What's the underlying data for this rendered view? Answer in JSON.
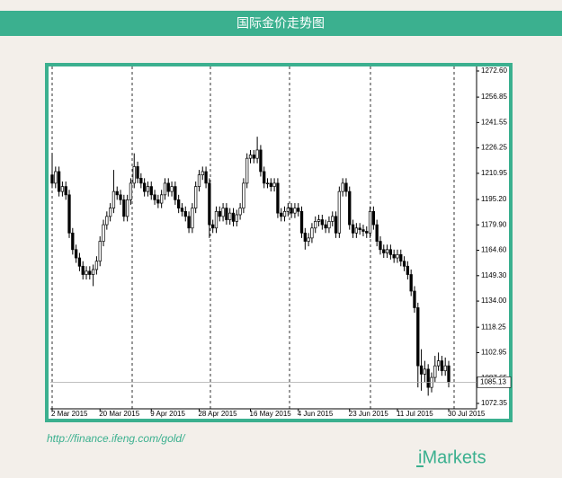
{
  "header": {
    "title": "国际金价走势图"
  },
  "chart_data": {
    "type": "candlestick",
    "ylim": [
      1069.1,
      1275.3
    ],
    "yticks": [
      {
        "value": 1272.6,
        "label": "1272.60"
      },
      1256.85,
      1241.55,
      1226.25,
      1210.95,
      {
        "value": 1195.2,
        "label": "1195.20"
      },
      {
        "value": 1179.9,
        "label": "1179.90"
      },
      {
        "value": 1164.6,
        "label": "1164.60"
      },
      {
        "value": 1149.3,
        "label": "1149.30"
      },
      {
        "value": 1134,
        "label": "1134.00"
      },
      1118.25,
      1102.95,
      1087.65,
      1072.35
    ],
    "xticks": [
      {
        "value": 0,
        "label": "2 Mar 2015"
      },
      {
        "value": 14,
        "label": "20 Mar 2015"
      },
      {
        "value": 29,
        "label": "9 Apr 2015"
      },
      {
        "value": 43,
        "label": "28 Apr 2015"
      },
      {
        "value": 58,
        "label": "16 May 2015"
      },
      {
        "value": 72,
        "label": "4 Jun 2015"
      },
      {
        "value": 87,
        "label": "23 Jun 2015"
      },
      {
        "value": 101,
        "label": "11 Jul 2015"
      },
      {
        "value": 116,
        "label": "30 Jul 2015"
      }
    ],
    "last_price": 1085.13,
    "up_color": "#ffffff",
    "down_color": "#000000",
    "open": [
      1210,
      1205,
      1212,
      1200,
      1203,
      1198,
      1175,
      1165,
      1160,
      1155,
      1150,
      1152,
      1150,
      1153,
      1158,
      1170,
      1180,
      1185,
      1190,
      1200,
      1198,
      1195,
      1185,
      1195,
      1205,
      1215,
      1208,
      1205,
      1200,
      1203,
      1198,
      1195,
      1193,
      1198,
      1205,
      1200,
      1203,
      1195,
      1190,
      1188,
      1185,
      1178,
      1190,
      1203,
      1210,
      1212,
      1205,
      1180,
      1178,
      1188,
      1185,
      1190,
      1183,
      1187,
      1182,
      1186,
      1190,
      1205,
      1220,
      1222,
      1220,
      1225,
      1212,
      1205,
      1205,
      1203,
      1205,
      1187,
      1185,
      1188,
      1190,
      1187,
      1190,
      1188,
      1175,
      1170,
      1172,
      1178,
      1182,
      1183,
      1180,
      1178,
      1182,
      1185,
      1175,
      1200,
      1205,
      1200,
      1180,
      1175,
      1178,
      1177,
      1176,
      1175,
      1188,
      1180,
      1170,
      1165,
      1163,
      1165,
      1162,
      1160,
      1162,
      1158,
      1155,
      1150,
      1140,
      1130,
      1095,
      1090,
      1093,
      1082,
      1088,
      1095,
      1098,
      1092,
      1095
    ],
    "high": [
      1223,
      1215,
      1215,
      1206,
      1206,
      1201,
      1178,
      1168,
      1163,
      1158,
      1155,
      1155,
      1156,
      1161,
      1173,
      1183,
      1188,
      1193,
      1213,
      1203,
      1201,
      1198,
      1198,
      1208,
      1223,
      1218,
      1211,
      1208,
      1206,
      1206,
      1201,
      1198,
      1201,
      1208,
      1208,
      1206,
      1206,
      1198,
      1193,
      1191,
      1188,
      1193,
      1206,
      1213,
      1215,
      1215,
      1208,
      1183,
      1191,
      1191,
      1193,
      1193,
      1190,
      1190,
      1189,
      1193,
      1208,
      1223,
      1225,
      1225,
      1233,
      1228,
      1215,
      1208,
      1208,
      1208,
      1208,
      1190,
      1191,
      1193,
      1193,
      1193,
      1193,
      1191,
      1178,
      1175,
      1181,
      1185,
      1186,
      1186,
      1183,
      1185,
      1188,
      1188,
      1203,
      1208,
      1208,
      1203,
      1183,
      1181,
      1181,
      1180,
      1179,
      1191,
      1191,
      1183,
      1173,
      1168,
      1168,
      1168,
      1165,
      1165,
      1165,
      1161,
      1158,
      1153,
      1143,
      1133,
      1105,
      1098,
      1096,
      1091,
      1101,
      1103,
      1101,
      1100,
      1098
    ],
    "low": [
      1202,
      1202,
      1197,
      1197,
      1195,
      1172,
      1162,
      1157,
      1152,
      1147,
      1147,
      1147,
      1143,
      1150,
      1155,
      1167,
      1177,
      1182,
      1187,
      1195,
      1192,
      1182,
      1182,
      1192,
      1202,
      1205,
      1202,
      1197,
      1197,
      1195,
      1192,
      1190,
      1190,
      1195,
      1197,
      1197,
      1192,
      1187,
      1185,
      1182,
      1175,
      1175,
      1187,
      1200,
      1207,
      1202,
      1172,
      1175,
      1175,
      1182,
      1182,
      1180,
      1180,
      1179,
      1179,
      1183,
      1187,
      1202,
      1217,
      1217,
      1217,
      1209,
      1202,
      1202,
      1200,
      1200,
      1184,
      1182,
      1182,
      1185,
      1184,
      1184,
      1185,
      1172,
      1165,
      1167,
      1169,
      1175,
      1179,
      1177,
      1175,
      1175,
      1179,
      1172,
      1172,
      1197,
      1197,
      1177,
      1172,
      1172,
      1174,
      1173,
      1172,
      1172,
      1177,
      1167,
      1162,
      1160,
      1160,
      1159,
      1157,
      1157,
      1155,
      1152,
      1147,
      1137,
      1127,
      1082,
      1080,
      1085,
      1077,
      1079,
      1085,
      1092,
      1089,
      1089,
      1082
    ],
    "close": [
      1205,
      1212,
      1200,
      1203,
      1198,
      1175,
      1165,
      1160,
      1155,
      1150,
      1152,
      1150,
      1153,
      1158,
      1170,
      1180,
      1185,
      1190,
      1200,
      1198,
      1195,
      1185,
      1195,
      1205,
      1215,
      1208,
      1205,
      1200,
      1203,
      1198,
      1195,
      1193,
      1198,
      1205,
      1200,
      1203,
      1195,
      1190,
      1188,
      1185,
      1178,
      1190,
      1203,
      1210,
      1212,
      1205,
      1180,
      1178,
      1188,
      1185,
      1190,
      1183,
      1187,
      1182,
      1186,
      1190,
      1205,
      1220,
      1222,
      1220,
      1225,
      1212,
      1205,
      1205,
      1203,
      1205,
      1187,
      1185,
      1188,
      1190,
      1187,
      1190,
      1188,
      1175,
      1170,
      1172,
      1178,
      1182,
      1183,
      1180,
      1178,
      1182,
      1185,
      1175,
      1200,
      1205,
      1200,
      1180,
      1175,
      1178,
      1177,
      1176,
      1175,
      1188,
      1180,
      1170,
      1165,
      1163,
      1165,
      1162,
      1160,
      1162,
      1158,
      1155,
      1150,
      1140,
      1130,
      1095,
      1090,
      1093,
      1082,
      1088,
      1095,
      1098,
      1092,
      1095,
      1085.13
    ]
  },
  "footer": {
    "source": "http://finance.ifeng.com/gold/",
    "logo": "iMarkets"
  }
}
